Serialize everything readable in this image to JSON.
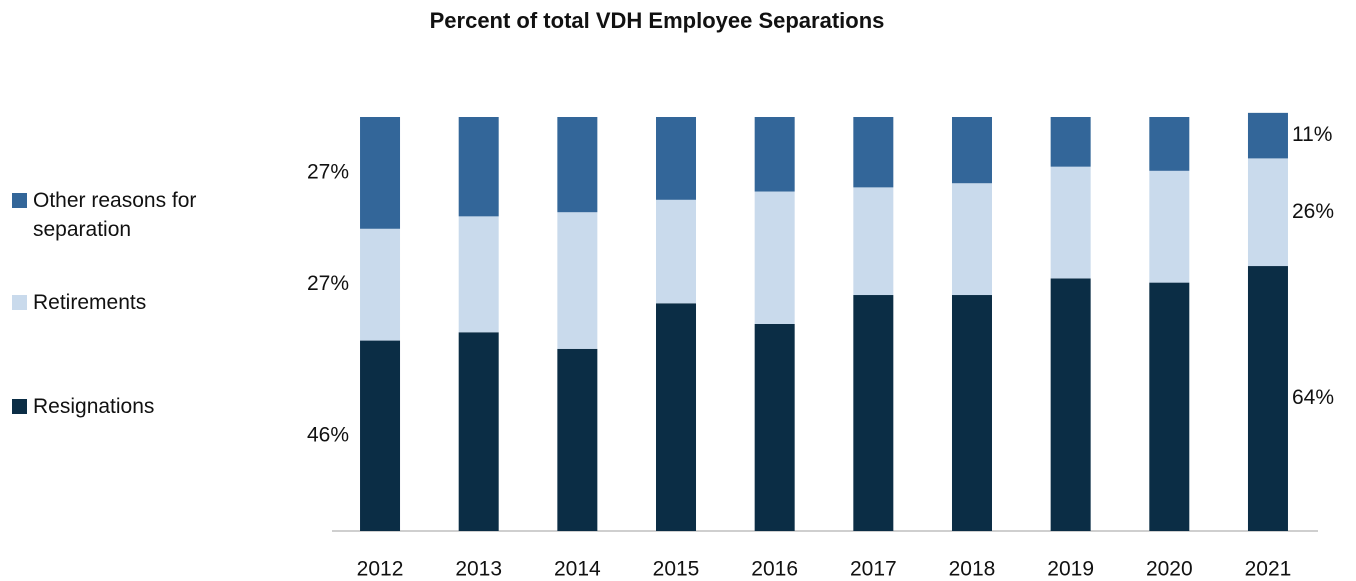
{
  "chart_data": {
    "type": "stacked_bar",
    "title": "Percent of total VDH Employee Separations",
    "categories": [
      "2012",
      "2013",
      "2014",
      "2015",
      "2016",
      "2017",
      "2018",
      "2019",
      "2020",
      "2021"
    ],
    "series": [
      {
        "name": "Resignations",
        "color": "#0b2d45",
        "values": [
          46,
          48,
          44,
          55,
          50,
          57,
          57,
          61,
          60,
          64
        ],
        "value_labels": [
          "46%",
          null,
          null,
          null,
          null,
          null,
          null,
          null,
          null,
          "64%"
        ]
      },
      {
        "name": "Retirements",
        "color": "#c9daec",
        "values": [
          27,
          28,
          33,
          25,
          32,
          26,
          27,
          27,
          27,
          26
        ],
        "value_labels": [
          "27%",
          null,
          null,
          null,
          null,
          null,
          null,
          null,
          null,
          "26%"
        ]
      },
      {
        "name": "Other reasons for separation",
        "color": "#336699",
        "values": [
          27,
          24,
          23,
          20,
          18,
          17,
          16,
          12,
          13,
          11
        ],
        "value_labels": [
          "27%",
          null,
          null,
          null,
          null,
          null,
          null,
          null,
          null,
          "11%"
        ]
      }
    ],
    "ylim": [
      0,
      100
    ],
    "legend": "left"
  }
}
